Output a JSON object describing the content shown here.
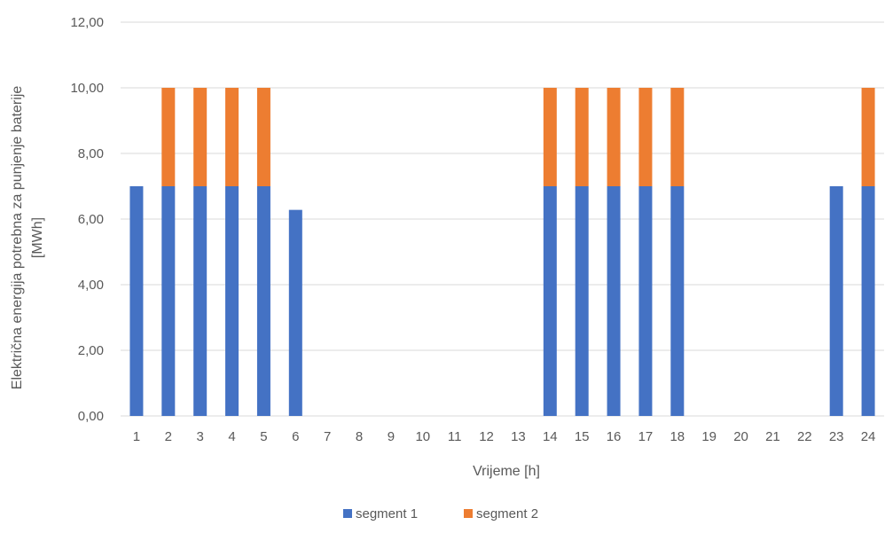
{
  "chart_data": {
    "type": "bar",
    "stacked": true,
    "categories": [
      "1",
      "2",
      "3",
      "4",
      "5",
      "6",
      "7",
      "8",
      "9",
      "10",
      "11",
      "12",
      "13",
      "14",
      "15",
      "16",
      "17",
      "18",
      "19",
      "20",
      "21",
      "22",
      "23",
      "24"
    ],
    "series": [
      {
        "name": "segment 1",
        "color": "#4472C4",
        "values": [
          7,
          7,
          7,
          7,
          7,
          6.28,
          0,
          0,
          0,
          0,
          0,
          0,
          0,
          7,
          7,
          7,
          7,
          7,
          0,
          0,
          0,
          0,
          7,
          7
        ]
      },
      {
        "name": "segment 2",
        "color": "#ED7D31",
        "values": [
          0,
          3,
          3,
          3,
          3,
          0,
          0,
          0,
          0,
          0,
          0,
          0,
          0,
          3,
          3,
          3,
          3,
          3,
          0,
          0,
          0,
          0,
          0,
          3
        ]
      }
    ],
    "y_ticks": [
      "0,00",
      "2,00",
      "4,00",
      "6,00",
      "8,00",
      "10,00",
      "12,00"
    ],
    "ylim": [
      0,
      12
    ],
    "xlabel": "Vrijeme [h]",
    "ylabel_line1": "Električna energija potrebna za punjenje baterije",
    "ylabel_line2": "[MWh]",
    "grid": true,
    "legend_position": "bottom",
    "gridline_color": "#d9d9d9",
    "axis_color": "#d9d9d9"
  }
}
